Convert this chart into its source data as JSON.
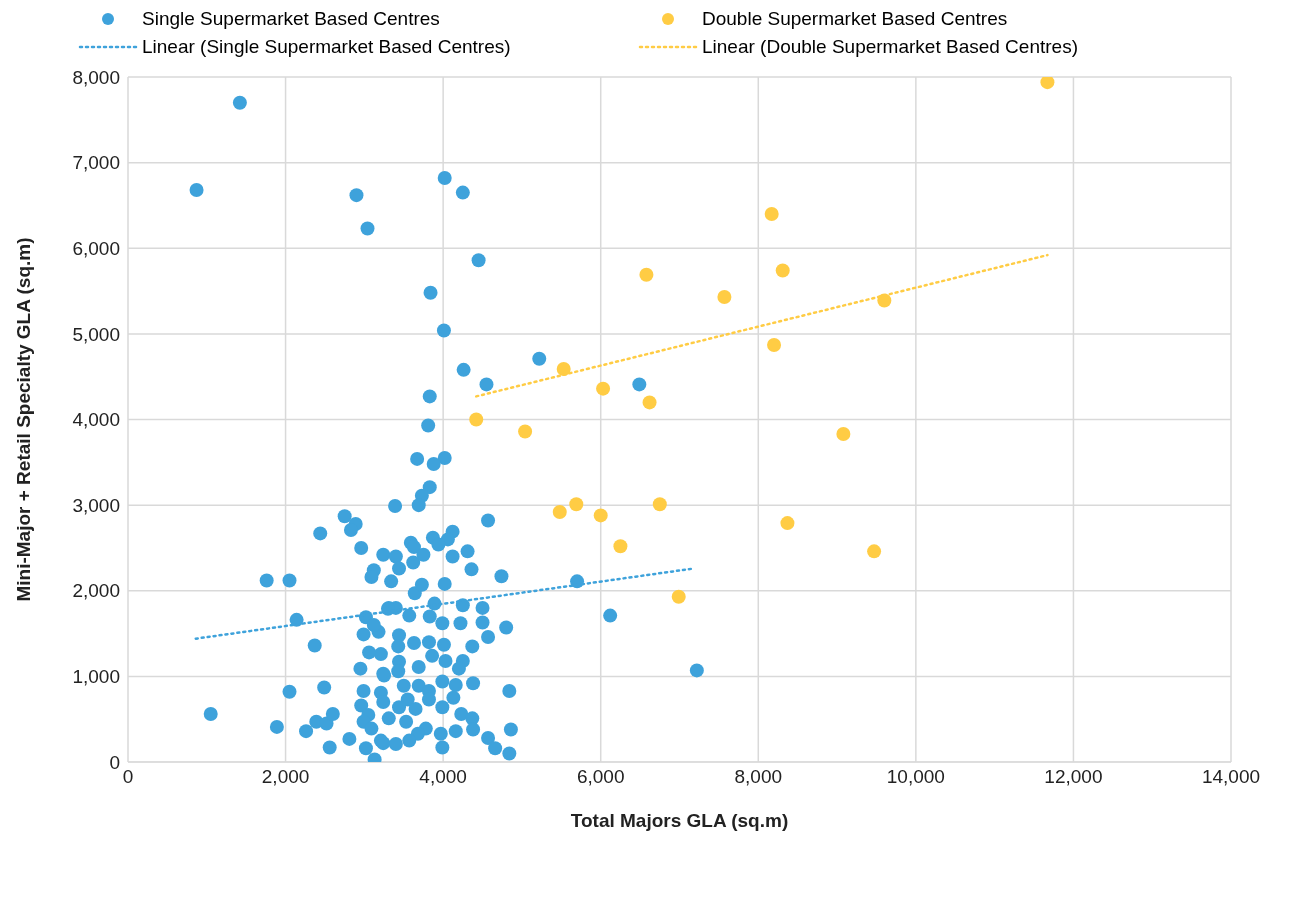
{
  "chart_data": {
    "type": "scatter",
    "xlabel": "Total Majors GLA (sq.m)",
    "ylabel": "Mini-Major + Retail Specialty GLA (sq.m)",
    "xlim": [
      0,
      14000
    ],
    "xticks": [
      0,
      {
        "value": 2000,
        "label": "2,000"
      },
      {
        "value": 4000,
        "label": "4,000"
      },
      {
        "value": 6000,
        "label": "6,000"
      },
      {
        "value": 8000,
        "label": "8,000"
      },
      {
        "value": 10000,
        "label": "10,000"
      },
      {
        "value": 12000,
        "label": "12,000"
      },
      {
        "value": 14000,
        "label": "14,000"
      }
    ],
    "ylim": [
      0,
      8000
    ],
    "yticks": [
      0,
      {
        "value": 1000,
        "label": "1,000"
      },
      {
        "value": 2000,
        "label": "2,000"
      },
      {
        "value": 3000,
        "label": "3,000"
      },
      {
        "value": 4000,
        "label": "4,000"
      },
      {
        "value": 5000,
        "label": "5,000"
      },
      {
        "value": 6000,
        "label": "6,000"
      },
      {
        "value": 7000,
        "label": "7,000"
      },
      {
        "value": 8000,
        "label": "8,000"
      }
    ],
    "grid": true,
    "legend": "top",
    "series": [
      {
        "name": "Single Supermarket Based Centres",
        "marker": "circle",
        "color": "#3ea2db",
        "x": [
          1420,
          870,
          2900,
          3040,
          4020,
          4250,
          4450,
          3840,
          4010,
          4260,
          4550,
          5220,
          6490,
          3830,
          3810,
          3670,
          4020,
          3880,
          3830,
          3730,
          3690,
          3390,
          2750,
          2890,
          2830,
          2440,
          4570,
          2960,
          3870,
          4120,
          4060,
          3940,
          3590,
          3630,
          3240,
          3400,
          3620,
          3750,
          4120,
          4310,
          4360,
          3120,
          3090,
          3440,
          3340,
          4740,
          5700,
          6120,
          7220,
          1760,
          2050,
          2140,
          2370,
          2050,
          2490,
          1050,
          1890,
          2260,
          2390,
          2520,
          2600,
          2810,
          2560,
          4020,
          3640,
          3730,
          3890,
          4250,
          4500,
          3310,
          3400,
          3570,
          3830,
          3990,
          4220,
          4500,
          4800,
          3180,
          3440,
          3630,
          3820,
          4010,
          4570,
          4370,
          3210,
          3430,
          3860,
          4250,
          3440,
          3690,
          4030,
          4200,
          3240,
          3430,
          4380,
          4840,
          3990,
          4160,
          3690,
          3500,
          3210,
          3820,
          3550,
          3820,
          4130,
          3240,
          3440,
          3650,
          3990,
          3310,
          3530,
          3780,
          3680,
          4230,
          4370,
          4380,
          4160,
          3970,
          3990,
          4570,
          4660,
          4860,
          4840,
          3240,
          3400,
          3570,
          3130,
          3020,
          3120,
          2990,
          3060,
          2950,
          3300,
          2990,
          3250,
          2960,
          3050,
          2990,
          3090,
          3020,
          3210
        ],
        "values": [
          7700,
          6680,
          6620,
          6230,
          6820,
          6650,
          5860,
          5480,
          5040,
          4580,
          4410,
          4710,
          4410,
          4270,
          3930,
          3540,
          3550,
          3480,
          3210,
          3110,
          3000,
          2990,
          2870,
          2780,
          2710,
          2670,
          2820,
          2500,
          2620,
          2690,
          2600,
          2540,
          2560,
          2510,
          2420,
          2400,
          2330,
          2420,
          2400,
          2460,
          2250,
          2240,
          2160,
          2260,
          2110,
          2170,
          2110,
          1710,
          1070,
          2120,
          2120,
          1660,
          1360,
          820,
          870,
          560,
          410,
          360,
          470,
          450,
          560,
          270,
          170,
          2080,
          1970,
          2070,
          1850,
          1830,
          1800,
          1800,
          1800,
          1710,
          1700,
          1620,
          1620,
          1630,
          1570,
          1520,
          1480,
          1390,
          1400,
          1370,
          1460,
          1350,
          1260,
          1350,
          1240,
          1180,
          1170,
          1110,
          1180,
          1090,
          1030,
          1060,
          920,
          830,
          940,
          900,
          890,
          890,
          810,
          830,
          730,
          730,
          750,
          700,
          640,
          620,
          640,
          510,
          470,
          390,
          330,
          560,
          510,
          380,
          360,
          330,
          170,
          280,
          160,
          380,
          100,
          220,
          210,
          250,
          30,
          1690,
          1600,
          1490,
          1280,
          1090,
          1790,
          830,
          1010,
          660,
          550,
          470,
          390,
          160,
          250
        ]
      },
      {
        "name": "Double Supermarket Based Centres",
        "marker": "circle",
        "color": "#ffcc44",
        "x": [
          11670,
          8170,
          6580,
          8310,
          7570,
          9600,
          8200,
          5530,
          6030,
          6620,
          4420,
          5040,
          9080,
          5690,
          5480,
          6000,
          6750,
          8370,
          6250,
          9470,
          6990
        ],
        "values": [
          7940,
          6400,
          5690,
          5740,
          5430,
          5390,
          4870,
          4590,
          4360,
          4200,
          4000,
          3860,
          3830,
          3010,
          2920,
          2880,
          3010,
          2790,
          2520,
          2460,
          1930
        ]
      },
      {
        "name": "Linear (Single Supermarket Based Centres)",
        "type": "line",
        "marker": "none",
        "line_style": "dotted",
        "color": "#3ea2db",
        "x": [
          860,
          7180
        ],
        "values": [
          1440,
          2260
        ]
      },
      {
        "name": "Linear (Double Supermarket Based Centres)",
        "type": "line",
        "marker": "none",
        "line_style": "dotted",
        "color": "#ffcc44",
        "x": [
          4420,
          11670
        ],
        "values": [
          4270,
          5920
        ]
      }
    ]
  }
}
